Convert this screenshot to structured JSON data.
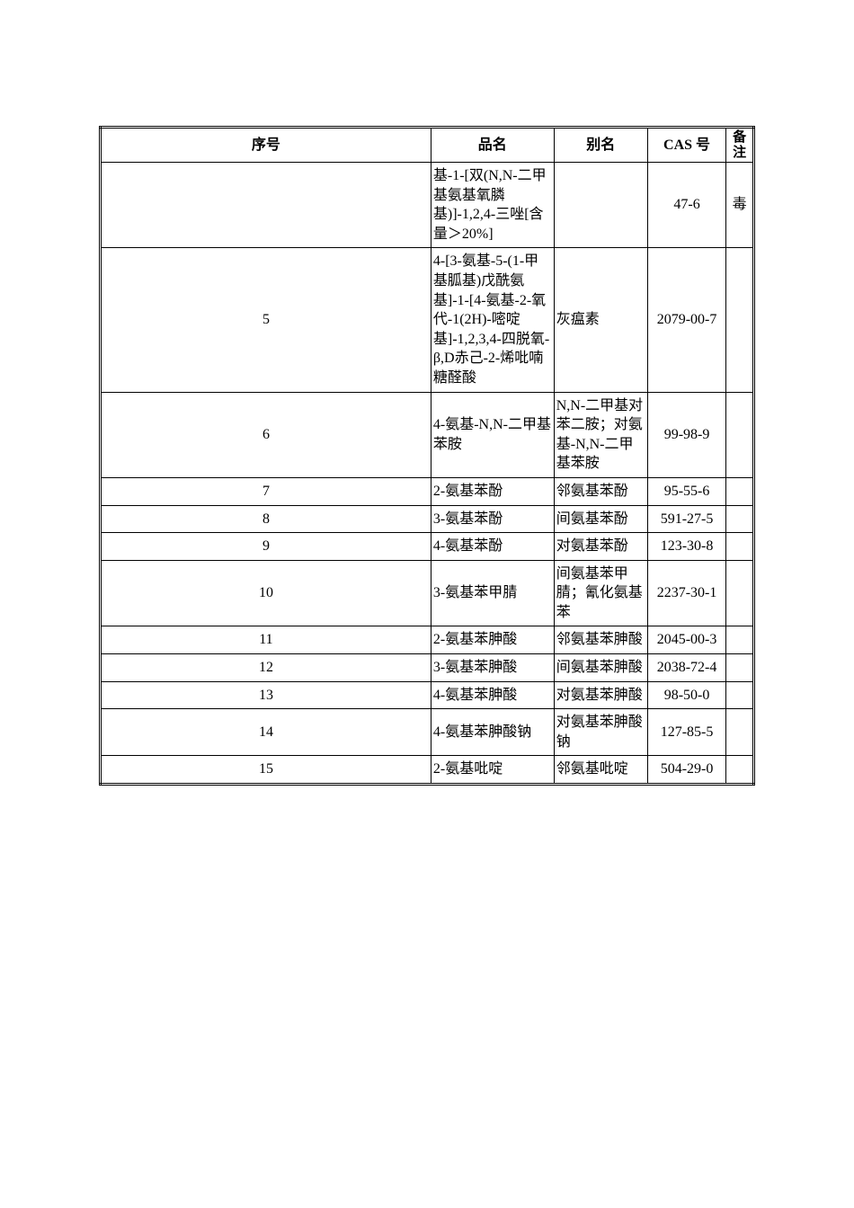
{
  "headers": {
    "seq": "序号",
    "name": "品名",
    "alias": "别名",
    "cas": "CAS 号",
    "note": "备注"
  },
  "rows": [
    {
      "seq": "",
      "name": "基-1-[双(N,N-二甲基氨基氧膦基)]-1,2,4-三唑[含量＞20%]",
      "alias": "",
      "cas": "47-6",
      "note": "毒"
    },
    {
      "seq": "5",
      "name": "4-[3-氨基-5-(1-甲基胍基)戊酰氨基]-1-[4-氨基-2-氧代-1(2H)-嘧啶基]-1,2,3,4-四脱氧-β,D赤己-2-烯吡喃糖醛酸",
      "alias": "灰瘟素",
      "cas": "2079-00-7",
      "note": ""
    },
    {
      "seq": "6",
      "name": "4-氨基-N,N-二甲基苯胺",
      "alias": "N,N-二甲基对苯二胺；对氨基-N,N-二甲基苯胺",
      "cas": "99-98-9",
      "note": ""
    },
    {
      "seq": "7",
      "name": "2-氨基苯酚",
      "alias": "邻氨基苯酚",
      "cas": "95-55-6",
      "note": ""
    },
    {
      "seq": "8",
      "name": "3-氨基苯酚",
      "alias": "间氨基苯酚",
      "cas": "591-27-5",
      "note": ""
    },
    {
      "seq": "9",
      "name": "4-氨基苯酚",
      "alias": "对氨基苯酚",
      "cas": "123-30-8",
      "note": ""
    },
    {
      "seq": "10",
      "name": "3-氨基苯甲腈",
      "alias": "间氨基苯甲腈；氰化氨基苯",
      "cas": "2237-30-1",
      "note": ""
    },
    {
      "seq": "11",
      "name": "2-氨基苯胂酸",
      "alias": "邻氨基苯胂酸",
      "cas": "2045-00-3",
      "note": ""
    },
    {
      "seq": "12",
      "name": "3-氨基苯胂酸",
      "alias": "间氨基苯胂酸",
      "cas": "2038-72-4",
      "note": ""
    },
    {
      "seq": "13",
      "name": "4-氨基苯胂酸",
      "alias": "对氨基苯胂酸",
      "cas": "98-50-0",
      "note": ""
    },
    {
      "seq": "14",
      "name": "4-氨基苯胂酸钠",
      "alias": "对氨基苯胂酸钠",
      "cas": "127-85-5",
      "note": ""
    },
    {
      "seq": "15",
      "name": "2-氨基吡啶",
      "alias": "邻氨基吡啶",
      "cas": "504-29-0",
      "note": ""
    }
  ]
}
